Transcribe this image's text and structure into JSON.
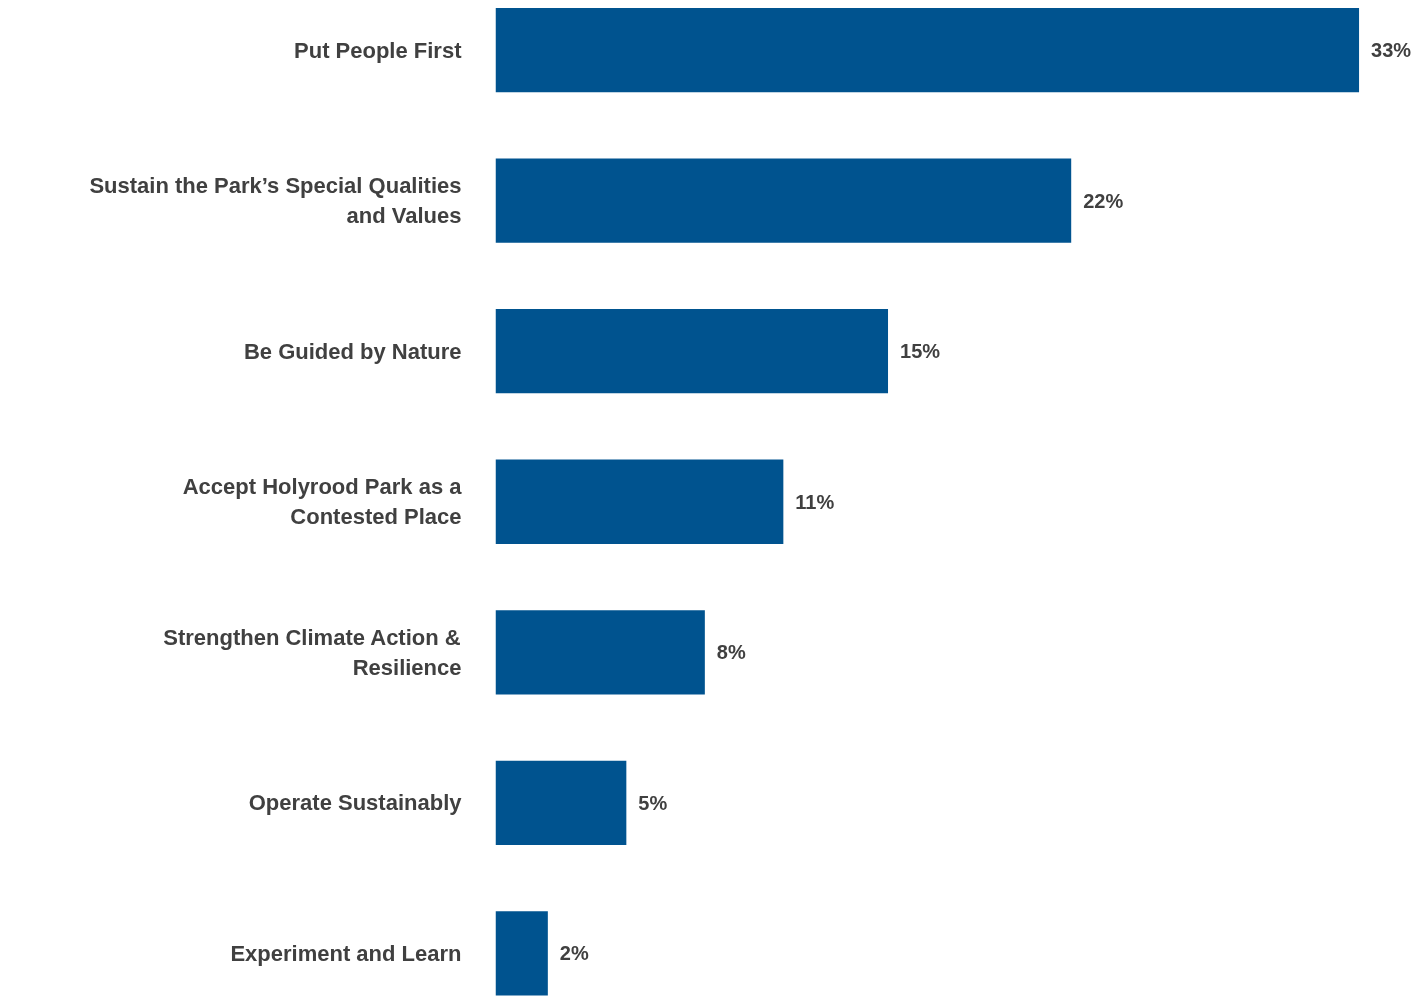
{
  "chart_data": {
    "type": "bar",
    "orientation": "horizontal",
    "categories": [
      "Put People First",
      "Sustain the Park’s Special Qualities\nand Values",
      "Be Guided by Nature",
      "Accept Holyrood Park as a\nContested Place",
      "Strengthen Climate Action &\nResilience",
      "Operate Sustainably",
      "Experiment and Learn"
    ],
    "values": [
      33,
      22,
      15,
      11,
      8,
      5,
      2
    ],
    "value_labels": [
      "33%",
      "22%",
      "15%",
      "11%",
      "8%",
      "5%",
      "2%"
    ],
    "color": "#00538f",
    "grid": false
  }
}
